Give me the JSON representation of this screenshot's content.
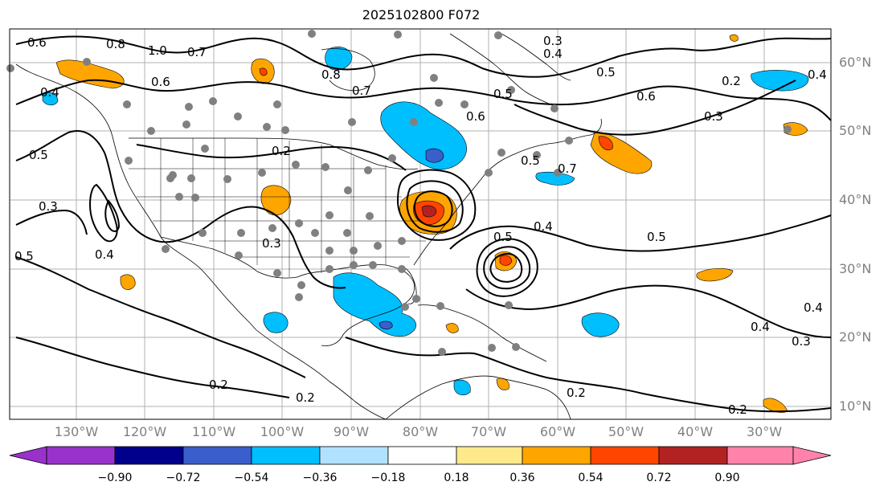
{
  "title": "2025102800 F072",
  "lat_labels": [
    "60°N",
    "50°N",
    "40°N",
    "30°N",
    "20°N",
    "10°N"
  ],
  "lon_labels": [
    "130°W",
    "120°W",
    "110°W",
    "100°W",
    "90°W",
    "80°W",
    "70°W",
    "60°W",
    "50°W",
    "40°W",
    "30°W"
  ],
  "colorbar": {
    "colors": [
      "#9932cc",
      "#00008b",
      "#3a5fcd",
      "#00bfff",
      "#b0e2ff",
      "#ffffff",
      "#ffe98a",
      "#ffa500",
      "#ff4500",
      "#b22222",
      "#ff82ab"
    ],
    "ticks": [
      "−0.90",
      "−0.72",
      "−0.54",
      "−0.36",
      "−0.18",
      "0.18",
      "0.36",
      "0.54",
      "0.72",
      "0.90"
    ]
  },
  "contour_labels": [
    "0.6",
    "0.8",
    "1.0",
    "0.7",
    "0.6",
    "0.4",
    "0.7",
    "0.5",
    "0.3",
    "0.4",
    "0.5",
    "0.8",
    "0.5",
    "0.6",
    "0.2",
    "0.3",
    "0.4",
    "0.5",
    "0.6",
    "0.7",
    "0.2",
    "0.5",
    "0.3",
    "0.4",
    "0.5",
    "0.4",
    "0.5",
    "0.3",
    "0.2",
    "0.2",
    "0.2",
    "0.4",
    "0.3",
    "0.4",
    "0.2"
  ],
  "legend_colors": {
    "positive": "#ffa500",
    "negative": "#00bfff",
    "station": "#808080"
  }
}
